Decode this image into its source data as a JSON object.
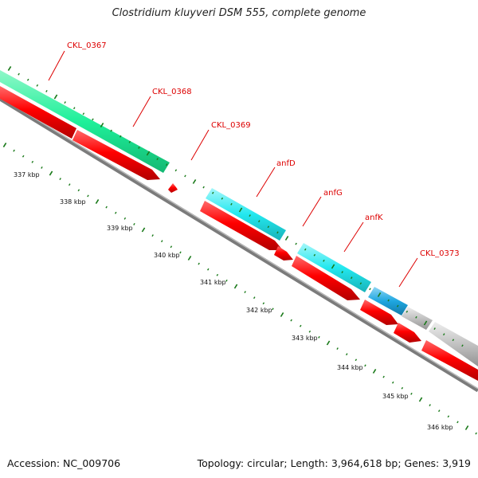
{
  "title": "Clostridium kluyveri DSM 555, complete genome",
  "footer": {
    "accession": "Accession: NC_009706",
    "stats": "Topology: circular; Length: 3,964,618 bp; Genes: 3,919"
  },
  "colors": {
    "backbone": "#808080",
    "cds_reverse": "#ff0000",
    "label": "#dd0000",
    "tick": "#1a7a1a",
    "cds_green": "#1ef09a",
    "cds_cyan": "#23e8ef",
    "cds_blue": "#1ea6e0",
    "cds_gray": "#c2c2c2"
  },
  "genes": [
    {
      "label": "CKL_0367"
    },
    {
      "label": "CKL_0368"
    },
    {
      "label": "CKL_0369"
    },
    {
      "label": "anfD"
    },
    {
      "label": "anfG"
    },
    {
      "label": "anfK"
    },
    {
      "label": "CKL_0373"
    }
  ],
  "ticks": [
    "337 kbp",
    "338 kbp",
    "339 kbp",
    "340 kbp",
    "341 kbp",
    "342 kbp",
    "343 kbp",
    "344 kbp",
    "345 kbp",
    "346 kbp"
  ]
}
